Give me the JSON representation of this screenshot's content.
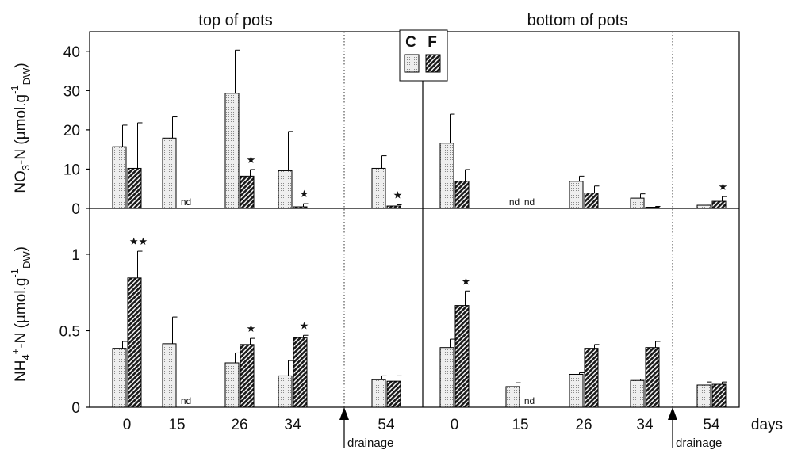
{
  "chart_data": {
    "type": "bar",
    "panel_titles": [
      "top of pots",
      "bottom of pots"
    ],
    "x_unit": "days",
    "categories": [
      "0",
      "15",
      "26",
      "34",
      "54"
    ],
    "drainage_label": "drainage",
    "legend": {
      "C": "C",
      "F": "F"
    },
    "nd_label": "nd",
    "colors": {
      "C_fill": "#dcdcdc",
      "F_fill": "#2a2a2a",
      "axis": "#000000"
    },
    "rows": [
      {
        "id": "nitrate",
        "ylabel_main": "NO",
        "ylabel_sub": "3",
        "ylabel_rest": "-N (µmol.g",
        "ylabel_sup": "-1",
        "ylabel_sub2": "DW",
        "ylabel_end": ")",
        "ylim": [
          0,
          45
        ],
        "yticks": [
          "0",
          "10",
          "20",
          "30",
          "40"
        ],
        "ytick_values": [
          0,
          10,
          20,
          30,
          40
        ],
        "panels": [
          {
            "C": [
              15.7,
              17.9,
              29.3,
              9.6,
              10.2
            ],
            "C_err": [
              5.5,
              5.4,
              11.0,
              10.0,
              3.2
            ],
            "F": [
              10.2,
              0,
              8.2,
              0.4,
              0.6
            ],
            "F_err": [
              11.6,
              0,
              1.7,
              0.8,
              0.3
            ],
            "F_nd": [
              false,
              true,
              false,
              false,
              false
            ],
            "stars": [
              "",
              "",
              "★",
              "★",
              "★"
            ]
          },
          {
            "C": [
              16.6,
              0,
              6.9,
              2.6,
              0.8
            ],
            "C_err": [
              7.4,
              0,
              1.3,
              1.1,
              0.3
            ],
            "F": [
              6.9,
              0,
              3.9,
              0.3,
              1.8
            ],
            "F_err": [
              3.0,
              0,
              1.8,
              0.2,
              1.2
            ],
            "C_nd": [
              false,
              true,
              false,
              false,
              false
            ],
            "F_nd": [
              false,
              true,
              false,
              false,
              false
            ],
            "stars": [
              "",
              "",
              "",
              "",
              "★"
            ]
          }
        ]
      },
      {
        "id": "ammonium",
        "ylabel_main": "NH",
        "ylabel_sub": "4",
        "ylabel_sup0": "+",
        "ylabel_rest": "-N (µmol.g",
        "ylabel_sup": "-1",
        "ylabel_sub2": "DW",
        "ylabel_end": ")",
        "ylim": [
          0,
          1.3
        ],
        "yticks": [
          "0",
          "0.5",
          "1"
        ],
        "ytick_values": [
          0,
          0.5,
          1
        ],
        "panels": [
          {
            "C": [
              0.385,
              0.415,
              0.29,
              0.205,
              0.18
            ],
            "C_err": [
              0.045,
              0.175,
              0.065,
              0.1,
              0.025
            ],
            "F": [
              0.845,
              0,
              0.41,
              0.455,
              0.17
            ],
            "F_err": [
              0.175,
              0,
              0.04,
              0.015,
              0.035
            ],
            "F_nd": [
              false,
              true,
              false,
              false,
              false
            ],
            "stars": [
              "★★",
              "",
              "★",
              "★",
              ""
            ]
          },
          {
            "C": [
              0.39,
              0.135,
              0.215,
              0.175,
              0.145
            ],
            "C_err": [
              0.055,
              0.025,
              0.01,
              0.008,
              0.02
            ],
            "F": [
              0.665,
              0,
              0.385,
              0.39,
              0.15
            ],
            "F_err": [
              0.095,
              0,
              0.025,
              0.04,
              0.015
            ],
            "F_nd": [
              false,
              true,
              false,
              false,
              false
            ],
            "stars": [
              "★",
              "",
              "",
              "",
              ""
            ]
          }
        ]
      }
    ]
  }
}
